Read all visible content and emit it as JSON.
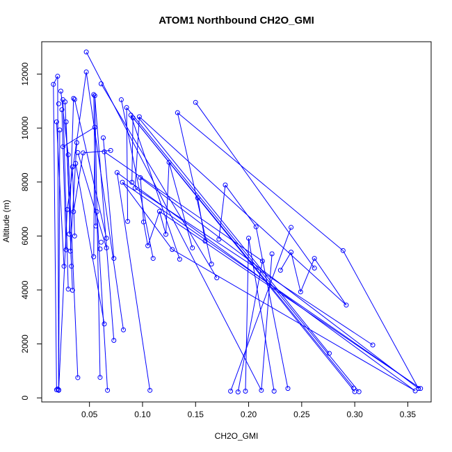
{
  "chart_data": {
    "type": "scatter",
    "title": "ATOM1 Northbound CH2O_GMI",
    "xlabel": "CH2O_GMI",
    "ylabel": "Altitude (m)",
    "xlim": [
      0.005,
      0.372
    ],
    "ylim": [
      -150,
      13200
    ],
    "x_ticks": [
      0.05,
      0.1,
      0.15,
      0.2,
      0.25,
      0.3,
      0.35
    ],
    "x_tick_labels": [
      "0.05",
      "0.10",
      "0.15",
      "0.20",
      "0.25",
      "0.30",
      "0.35"
    ],
    "y_ticks": [
      0,
      2000,
      4000,
      6000,
      8000,
      10000,
      12000
    ],
    "y_tick_labels": [
      "0",
      "2000",
      "4000",
      "6000",
      "8000",
      "10000",
      "12000"
    ],
    "grid": false,
    "series_color": "#0000ff",
    "series": [
      {
        "style": "lines+markers",
        "points": [
          [
            0.016,
            11620
          ],
          [
            0.019,
            10230
          ],
          [
            0.019,
            300
          ],
          [
            0.02,
            11920
          ],
          [
            0.021,
            10900
          ],
          [
            0.022,
            9930
          ],
          [
            0.02,
            330
          ],
          [
            0.023,
            11370
          ],
          [
            0.024,
            10680
          ],
          [
            0.025,
            9310
          ],
          [
            0.026,
            4880
          ],
          [
            0.021,
            300
          ],
          [
            0.025,
            11050
          ],
          [
            0.027,
            10970
          ],
          [
            0.028,
            10230
          ],
          [
            0.029,
            6980
          ],
          [
            0.028,
            5490
          ],
          [
            0.021,
            280
          ],
          [
            0.03,
            9010
          ],
          [
            0.031,
            6070
          ],
          [
            0.032,
            5440
          ],
          [
            0.03,
            4030
          ],
          [
            0.033,
            4880
          ],
          [
            0.034,
            3990
          ],
          [
            0.034,
            8560
          ],
          [
            0.035,
            6900
          ],
          [
            0.036,
            6000
          ],
          [
            0.035,
            11100
          ],
          [
            0.036,
            11060
          ],
          [
            0.038,
            9460
          ],
          [
            0.037,
            8690
          ],
          [
            0.039,
            9090
          ],
          [
            0.039,
            750
          ],
          [
            0.044,
            9080
          ],
          [
            0.047,
            12820
          ],
          [
            0.047,
            12080
          ],
          [
            0.055,
            11200
          ],
          [
            0.055,
            10030
          ],
          [
            0.057,
            6900
          ],
          [
            0.056,
            6370
          ],
          [
            0.06,
            5520
          ],
          [
            0.061,
            5770
          ],
          [
            0.06,
            760
          ],
          [
            0.066,
            5920
          ],
          [
            0.066,
            5560
          ],
          [
            0.064,
            2740
          ],
          [
            0.067,
            280
          ],
          [
            0.054,
            11240
          ],
          [
            0.054,
            5230
          ],
          [
            0.061,
            11640
          ],
          [
            0.063,
            9640
          ],
          [
            0.064,
            9120
          ],
          [
            0.07,
            9170
          ],
          [
            0.073,
            5170
          ],
          [
            0.073,
            2130
          ],
          [
            0.076,
            8350
          ],
          [
            0.08,
            11050
          ],
          [
            0.081,
            7990
          ],
          [
            0.082,
            2520
          ],
          [
            0.085,
            10760
          ],
          [
            0.086,
            6540
          ],
          [
            0.089,
            10480
          ],
          [
            0.09,
            7990
          ],
          [
            0.091,
            10380
          ],
          [
            0.093,
            7780
          ],
          [
            0.097,
            10420
          ],
          [
            0.098,
            8160
          ],
          [
            0.101,
            6520
          ],
          [
            0.105,
            5640
          ],
          [
            0.107,
            280
          ],
          [
            0.11,
            5170
          ],
          [
            0.116,
            6910
          ],
          [
            0.122,
            6060
          ],
          [
            0.125,
            8730
          ],
          [
            0.128,
            5500
          ],
          [
            0.133,
            10570
          ],
          [
            0.135,
            5140
          ],
          [
            0.147,
            5560
          ],
          [
            0.15,
            10950
          ],
          [
            0.152,
            7410
          ],
          [
            0.159,
            5810
          ],
          [
            0.165,
            4960
          ],
          [
            0.17,
            4450
          ],
          [
            0.172,
            5880
          ],
          [
            0.178,
            7890
          ],
          [
            0.183,
            250
          ],
          [
            0.19,
            220
          ],
          [
            0.197,
            250
          ],
          [
            0.2,
            5920
          ],
          [
            0.207,
            6340
          ],
          [
            0.212,
            280
          ],
          [
            0.213,
            5070
          ],
          [
            0.222,
            5340
          ],
          [
            0.224,
            250
          ],
          [
            0.23,
            4730
          ],
          [
            0.237,
            350
          ],
          [
            0.24,
            6320
          ],
          [
            0.24,
            5400
          ],
          [
            0.249,
            3930
          ],
          [
            0.262,
            5170
          ],
          [
            0.262,
            4810
          ],
          [
            0.276,
            1650
          ],
          [
            0.289,
            5460
          ],
          [
            0.292,
            3440
          ],
          [
            0.299,
            360
          ],
          [
            0.3,
            230
          ],
          [
            0.304,
            230
          ],
          [
            0.317,
            1960
          ],
          [
            0.357,
            260
          ],
          [
            0.36,
            350
          ],
          [
            0.362,
            350
          ]
        ],
        "segments": [
          [
            [
              0.016,
              11620
            ],
            [
              0.019,
              300
            ]
          ],
          [
            [
              0.016,
              11620
            ],
            [
              0.02,
              11920
            ]
          ],
          [
            [
              0.02,
              11920
            ],
            [
              0.021,
              330
            ]
          ],
          [
            [
              0.019,
              10230
            ],
            [
              0.026,
              4880
            ]
          ],
          [
            [
              0.022,
              9930
            ],
            [
              0.021,
              300
            ]
          ],
          [
            [
              0.023,
              11370
            ],
            [
              0.03,
              9010
            ]
          ],
          [
            [
              0.024,
              10680
            ],
            [
              0.028,
              5490
            ]
          ],
          [
            [
              0.025,
              11050
            ],
            [
              0.03,
              4030
            ]
          ],
          [
            [
              0.027,
              10970
            ],
            [
              0.034,
              3990
            ]
          ],
          [
            [
              0.028,
              10230
            ],
            [
              0.033,
              4880
            ]
          ],
          [
            [
              0.029,
              6980
            ],
            [
              0.021,
              280
            ]
          ],
          [
            [
              0.03,
              9010
            ],
            [
              0.039,
              750
            ]
          ],
          [
            [
              0.031,
              6070
            ],
            [
              0.035,
              11100
            ]
          ],
          [
            [
              0.034,
              8560
            ],
            [
              0.036,
              6000
            ]
          ],
          [
            [
              0.038,
              9460
            ],
            [
              0.032,
              5440
            ]
          ],
          [
            [
              0.039,
              9090
            ],
            [
              0.066,
              5560
            ]
          ],
          [
            [
              0.036,
              11060
            ],
            [
              0.066,
              5920
            ]
          ],
          [
            [
              0.037,
              8690
            ],
            [
              0.064,
              2740
            ]
          ],
          [
            [
              0.035,
              6900
            ],
            [
              0.044,
              9080
            ]
          ],
          [
            [
              0.025,
              9310
            ],
            [
              0.055,
              10030
            ]
          ],
          [
            [
              0.029,
              6980
            ],
            [
              0.047,
              12080
            ]
          ],
          [
            [
              0.047,
              12820
            ],
            [
              0.212,
              280
            ]
          ],
          [
            [
              0.047,
              12080
            ],
            [
              0.082,
              2520
            ]
          ],
          [
            [
              0.055,
              11200
            ],
            [
              0.073,
              2130
            ]
          ],
          [
            [
              0.055,
              11240
            ],
            [
              0.06,
              760
            ]
          ],
          [
            [
              0.054,
              5230
            ],
            [
              0.055,
              10030
            ]
          ],
          [
            [
              0.057,
              6900
            ],
            [
              0.067,
              280
            ]
          ],
          [
            [
              0.056,
              6370
            ],
            [
              0.054,
              11240
            ]
          ],
          [
            [
              0.061,
              11640
            ],
            [
              0.17,
              4450
            ]
          ],
          [
            [
              0.063,
              9640
            ],
            [
              0.073,
              5170
            ]
          ],
          [
            [
              0.064,
              9120
            ],
            [
              0.213,
              5070
            ]
          ],
          [
            [
              0.07,
              9170
            ],
            [
              0.044,
              9080
            ]
          ],
          [
            [
              0.076,
              8350
            ],
            [
              0.107,
              280
            ]
          ],
          [
            [
              0.08,
              11050
            ],
            [
              0.11,
              5170
            ]
          ],
          [
            [
              0.081,
              7990
            ],
            [
              0.128,
              5500
            ]
          ],
          [
            [
              0.085,
              10760
            ],
            [
              0.086,
              6540
            ]
          ],
          [
            [
              0.089,
              10480
            ],
            [
              0.135,
              5140
            ]
          ],
          [
            [
              0.09,
              7990
            ],
            [
              0.091,
              10380
            ]
          ],
          [
            [
              0.093,
              7780
            ],
            [
              0.097,
              10420
            ]
          ],
          [
            [
              0.098,
              8160
            ],
            [
              0.101,
              6520
            ]
          ],
          [
            [
              0.101,
              6520
            ],
            [
              0.105,
              5640
            ]
          ],
          [
            [
              0.105,
              5640
            ],
            [
              0.116,
              6910
            ]
          ],
          [
            [
              0.116,
              6910
            ],
            [
              0.122,
              6060
            ]
          ],
          [
            [
              0.122,
              6060
            ],
            [
              0.125,
              8730
            ]
          ],
          [
            [
              0.125,
              8730
            ],
            [
              0.147,
              5560
            ]
          ],
          [
            [
              0.133,
              10570
            ],
            [
              0.165,
              4960
            ]
          ],
          [
            [
              0.15,
              10950
            ],
            [
              0.262,
              4810
            ]
          ],
          [
            [
              0.152,
              7410
            ],
            [
              0.159,
              5810
            ]
          ],
          [
            [
              0.172,
              5880
            ],
            [
              0.178,
              7890
            ]
          ],
          [
            [
              0.178,
              7890
            ],
            [
              0.207,
              6340
            ]
          ],
          [
            [
              0.183,
              250
            ],
            [
              0.24,
              6320
            ]
          ],
          [
            [
              0.19,
              220
            ],
            [
              0.213,
              5070
            ]
          ],
          [
            [
              0.197,
              250
            ],
            [
              0.2,
              5920
            ]
          ],
          [
            [
              0.2,
              5920
            ],
            [
              0.224,
              250
            ]
          ],
          [
            [
              0.207,
              6340
            ],
            [
              0.237,
              350
            ]
          ],
          [
            [
              0.212,
              280
            ],
            [
              0.222,
              5340
            ]
          ],
          [
            [
              0.23,
              4730
            ],
            [
              0.24,
              5400
            ]
          ],
          [
            [
              0.24,
              5400
            ],
            [
              0.249,
              3930
            ]
          ],
          [
            [
              0.249,
              3930
            ],
            [
              0.262,
              5170
            ]
          ],
          [
            [
              0.262,
              5170
            ],
            [
              0.292,
              3440
            ]
          ],
          [
            [
              0.289,
              5460
            ],
            [
              0.133,
              10570
            ]
          ],
          [
            [
              0.276,
              1650
            ],
            [
              0.096,
              10400
            ]
          ],
          [
            [
              0.292,
              3440
            ],
            [
              0.097,
              10420
            ]
          ],
          [
            [
              0.299,
              360
            ],
            [
              0.091,
              10380
            ]
          ],
          [
            [
              0.3,
              230
            ],
            [
              0.089,
              10480
            ]
          ],
          [
            [
              0.304,
              230
            ],
            [
              0.085,
              10760
            ]
          ],
          [
            [
              0.317,
              1960
            ],
            [
              0.093,
              7780
            ]
          ],
          [
            [
              0.357,
              260
            ],
            [
              0.128,
              5500
            ]
          ],
          [
            [
              0.36,
              350
            ],
            [
              0.289,
              5460
            ]
          ],
          [
            [
              0.362,
              350
            ],
            [
              0.116,
              6910
            ]
          ],
          [
            [
              0.362,
              350
            ],
            [
              0.081,
              7990
            ]
          ],
          [
            [
              0.357,
              260
            ],
            [
              0.076,
              8350
            ]
          ],
          [
            [
              0.36,
              350
            ],
            [
              0.098,
              8160
            ]
          ]
        ]
      }
    ]
  }
}
